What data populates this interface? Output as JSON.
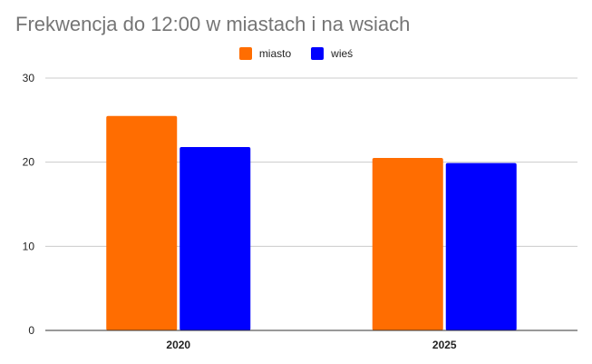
{
  "chart_data": {
    "type": "bar",
    "title": "Frekwencja do 12:00 w miastach i na wsiach",
    "xlabel": "",
    "ylabel": "",
    "categories": [
      "2020",
      "2025"
    ],
    "series": [
      {
        "name": "miasto",
        "color": "#ff6d01",
        "values": [
          25.5,
          20.5
        ]
      },
      {
        "name": "wieś",
        "color": "#0000ff",
        "values": [
          21.8,
          19.9
        ]
      }
    ],
    "ylim": [
      0,
      30
    ],
    "yticks": [
      "0",
      "10",
      "20",
      "30"
    ],
    "grid": true,
    "legend_position": "top-center"
  }
}
